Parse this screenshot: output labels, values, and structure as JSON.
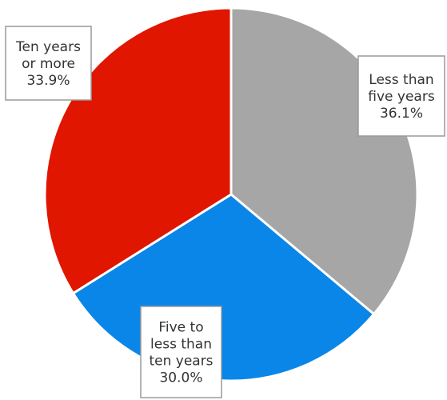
{
  "chart_data": {
    "type": "pie",
    "title": "",
    "slices": [
      {
        "label": "Less than five years",
        "label_lines": [
          "Less than",
          "five years"
        ],
        "value": 36.1,
        "value_label": "36.1%",
        "color": "#a6a6a6"
      },
      {
        "label": "Five to less than ten years",
        "label_lines": [
          "Five to",
          "less than",
          "ten years"
        ],
        "value": 30.0,
        "value_label": "30.0%",
        "color": "#0a86e8"
      },
      {
        "label": "Ten years or more",
        "label_lines": [
          "Ten years",
          "or more"
        ],
        "value": 33.9,
        "value_label": "33.9%",
        "color": "#e01600"
      }
    ],
    "start_angle": "12 o'clock",
    "direction": "clockwise",
    "legend": "none"
  }
}
